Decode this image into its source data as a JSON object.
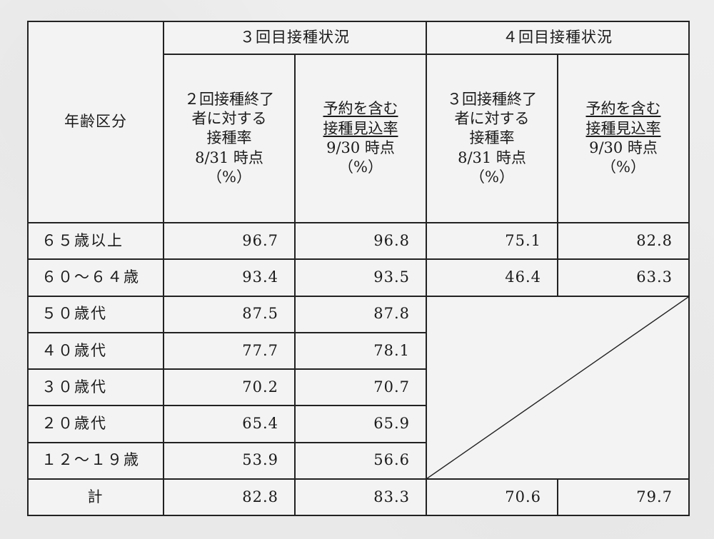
{
  "table": {
    "age_header": "年齢区分",
    "group3_header": "３回目接種状況",
    "group4_header": "４回目接種状況",
    "sub3a": [
      "２回接種終了",
      "者に対する",
      "接種率",
      "8/31 時点",
      "（%）"
    ],
    "sub3b": [
      "予約を含む",
      "接種見込率",
      "9/30 時点",
      "（%）"
    ],
    "sub4a": [
      "３回接種終了",
      "者に対する",
      "接種率",
      "8/31 時点",
      "（%）"
    ],
    "sub4b": [
      "予約を含む",
      "接種見込率",
      "9/30 時点",
      "（%）"
    ],
    "rows": [
      {
        "age": "６５歳以上",
        "v3a": "96.7",
        "v3b": "96.8",
        "v4a": "75.1",
        "v4b": "82.8"
      },
      {
        "age": "６０～６４歳",
        "v3a": "93.4",
        "v3b": "93.5",
        "v4a": "46.4",
        "v4b": "63.3"
      },
      {
        "age": "５０歳代",
        "v3a": "87.5",
        "v3b": "87.8"
      },
      {
        "age": "４０歳代",
        "v3a": "77.7",
        "v3b": "78.1"
      },
      {
        "age": "３０歳代",
        "v3a": "70.2",
        "v3b": "70.7"
      },
      {
        "age": "２０歳代",
        "v3a": "65.4",
        "v3b": "65.9"
      },
      {
        "age": "１２～１９歳",
        "v3a": "53.9",
        "v3b": "56.6"
      }
    ],
    "total": {
      "age": "計",
      "v3a": "82.8",
      "v3b": "83.3",
      "v4a": "70.6",
      "v4b": "79.7"
    }
  }
}
